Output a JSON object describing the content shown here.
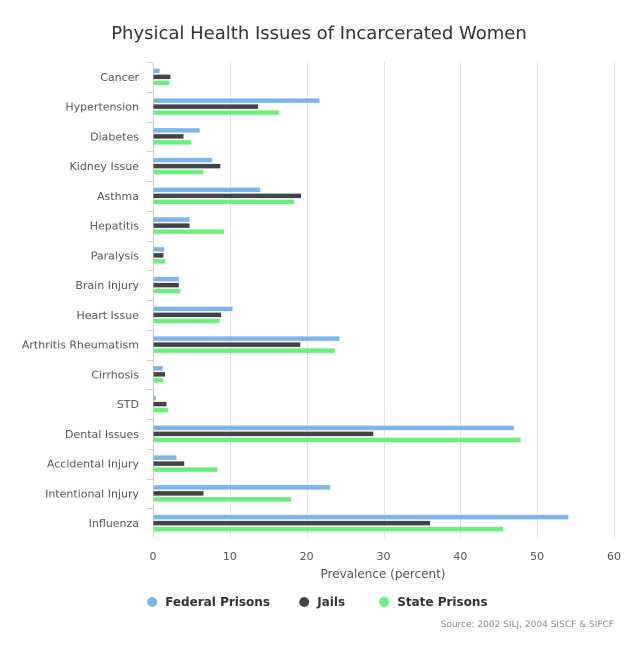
{
  "chart_data": {
    "type": "bar",
    "orientation": "horizontal",
    "title": "Physical Health Issues of Incarcerated Women",
    "xlabel": "Prevalence (percent)",
    "ylabel": "",
    "xlim": [
      0,
      60
    ],
    "xticks": [
      0,
      10,
      20,
      30,
      40,
      50,
      60
    ],
    "grid": true,
    "legend_position": "bottom-center",
    "categories": [
      "Cancer",
      "Hypertension",
      "Diabetes",
      "Kidney Issue",
      "Asthma",
      "Hepatitis",
      "Paralysis",
      "Brain Injury",
      "Heart Issue",
      "Arthritis Rheumatism",
      "Cirrhosis",
      "STD",
      "Dental Issues",
      "Accidental Injury",
      "Intentional Injury",
      "Influenza"
    ],
    "series": [
      {
        "name": "Federal Prisons",
        "color": "#7cb5ec",
        "values": [
          0.8,
          21.6,
          6.0,
          7.6,
          13.9,
          4.7,
          1.4,
          3.3,
          10.3,
          24.2,
          1.2,
          0.3,
          46.9,
          3.0,
          23.0,
          54.0
        ]
      },
      {
        "name": "Jails",
        "color": "#434348",
        "values": [
          2.2,
          13.6,
          3.9,
          8.7,
          19.2,
          4.7,
          1.3,
          3.3,
          8.8,
          19.1,
          1.5,
          1.7,
          28.6,
          4.0,
          6.5,
          36.0
        ]
      },
      {
        "name": "State Prisons",
        "color": "#6bf07f",
        "values": [
          2.1,
          16.3,
          4.9,
          6.5,
          18.3,
          9.2,
          1.5,
          3.5,
          8.6,
          23.6,
          1.3,
          1.9,
          47.8,
          8.3,
          17.9,
          45.5
        ]
      }
    ]
  },
  "credit": "Source: 2002 SILJ, 2004 SISCF & SIFCF"
}
